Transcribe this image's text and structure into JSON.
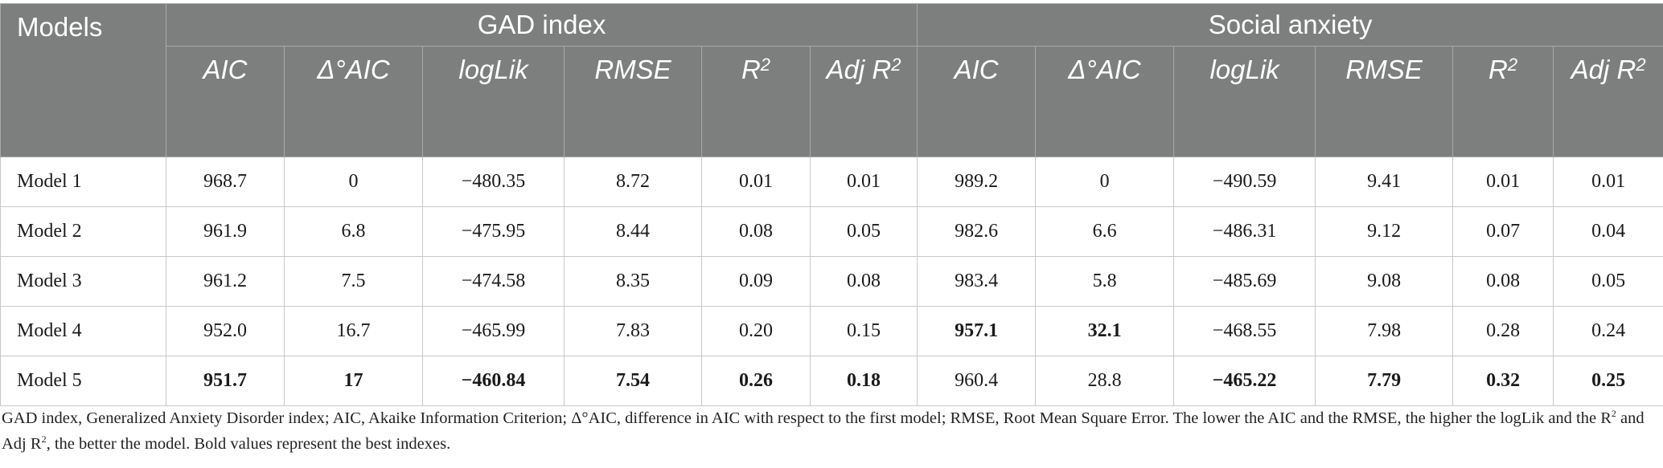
{
  "table": {
    "models_header": "Models",
    "group_headers": [
      "GAD index",
      "Social anxiety"
    ],
    "sub_headers": [
      {
        "label": "AIC",
        "sup": ""
      },
      {
        "label": "Δ°AIC",
        "sup": ""
      },
      {
        "label": "logLik",
        "sup": ""
      },
      {
        "label": "RMSE",
        "sup": ""
      },
      {
        "label": "R",
        "sup": "2"
      },
      {
        "label": "Adj R",
        "sup": "2"
      }
    ],
    "rows": [
      {
        "model": "Model 1",
        "cells": [
          {
            "v": "968.7",
            "b": false
          },
          {
            "v": "0",
            "b": false
          },
          {
            "v": "−480.35",
            "b": false
          },
          {
            "v": "8.72",
            "b": false
          },
          {
            "v": "0.01",
            "b": false
          },
          {
            "v": "0.01",
            "b": false
          },
          {
            "v": "989.2",
            "b": false
          },
          {
            "v": "0",
            "b": false
          },
          {
            "v": "−490.59",
            "b": false
          },
          {
            "v": "9.41",
            "b": false
          },
          {
            "v": "0.01",
            "b": false
          },
          {
            "v": "0.01",
            "b": false
          }
        ]
      },
      {
        "model": "Model 2",
        "cells": [
          {
            "v": "961.9",
            "b": false
          },
          {
            "v": "6.8",
            "b": false
          },
          {
            "v": "−475.95",
            "b": false
          },
          {
            "v": "8.44",
            "b": false
          },
          {
            "v": "0.08",
            "b": false
          },
          {
            "v": "0.05",
            "b": false
          },
          {
            "v": "982.6",
            "b": false
          },
          {
            "v": "6.6",
            "b": false
          },
          {
            "v": "−486.31",
            "b": false
          },
          {
            "v": "9.12",
            "b": false
          },
          {
            "v": "0.07",
            "b": false
          },
          {
            "v": "0.04",
            "b": false
          }
        ]
      },
      {
        "model": "Model 3",
        "cells": [
          {
            "v": "961.2",
            "b": false
          },
          {
            "v": "7.5",
            "b": false
          },
          {
            "v": "−474.58",
            "b": false
          },
          {
            "v": "8.35",
            "b": false
          },
          {
            "v": "0.09",
            "b": false
          },
          {
            "v": "0.08",
            "b": false
          },
          {
            "v": "983.4",
            "b": false
          },
          {
            "v": "5.8",
            "b": false
          },
          {
            "v": "−485.69",
            "b": false
          },
          {
            "v": "9.08",
            "b": false
          },
          {
            "v": "0.08",
            "b": false
          },
          {
            "v": "0.05",
            "b": false
          }
        ]
      },
      {
        "model": "Model 4",
        "cells": [
          {
            "v": "952.0",
            "b": false
          },
          {
            "v": "16.7",
            "b": false
          },
          {
            "v": "−465.99",
            "b": false
          },
          {
            "v": "7.83",
            "b": false
          },
          {
            "v": "0.20",
            "b": false
          },
          {
            "v": "0.15",
            "b": false
          },
          {
            "v": "957.1",
            "b": true
          },
          {
            "v": "32.1",
            "b": true
          },
          {
            "v": "−468.55",
            "b": false
          },
          {
            "v": "7.98",
            "b": false
          },
          {
            "v": "0.28",
            "b": false
          },
          {
            "v": "0.24",
            "b": false
          }
        ]
      },
      {
        "model": "Model 5",
        "cells": [
          {
            "v": "951.7",
            "b": true
          },
          {
            "v": "17",
            "b": true
          },
          {
            "v": "−460.84",
            "b": true
          },
          {
            "v": "7.54",
            "b": true
          },
          {
            "v": "0.26",
            "b": true
          },
          {
            "v": "0.18",
            "b": true
          },
          {
            "v": "960.4",
            "b": false
          },
          {
            "v": "28.8",
            "b": false
          },
          {
            "v": "−465.22",
            "b": true
          },
          {
            "v": "7.79",
            "b": true
          },
          {
            "v": "0.32",
            "b": true
          },
          {
            "v": "0.25",
            "b": true
          }
        ]
      }
    ]
  },
  "footnote": {
    "part1": "GAD index, Generalized Anxiety Disorder index; AIC, Akaike Information Criterion; Δ°AIC, difference in AIC with respect to the first model; RMSE, Root Mean Square Error. The lower the AIC and the RMSE, the higher the logLik and the R",
    "sup1": "2",
    "part2": " and Adj R",
    "sup2": "2",
    "part3": ", the better the model. Bold values represent the best indexes."
  },
  "colors": {
    "header_bg": "#7d7f7e",
    "header_text": "#ffffff",
    "border": "#c8c8c8"
  }
}
